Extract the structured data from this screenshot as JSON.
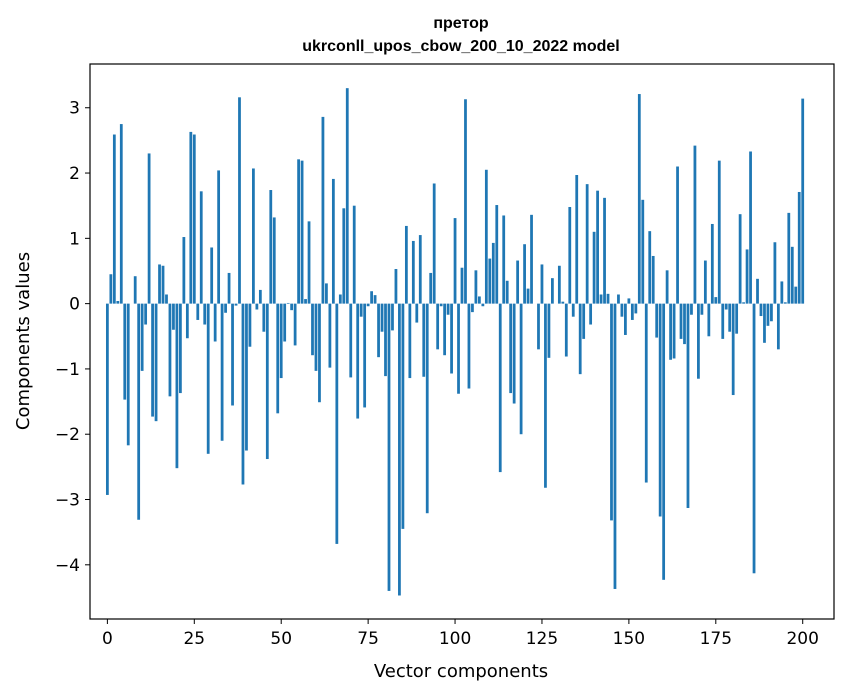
{
  "chart_data": {
    "type": "bar",
    "title_line1": "претор",
    "title_line2": "ukrconll_upos_cbow_200_10_2022 model",
    "xlabel": "Vector components",
    "ylabel": "Components values",
    "xlim": [
      -5,
      209
    ],
    "ylim": [
      -4.83,
      3.67
    ],
    "xticks": [
      0,
      25,
      50,
      75,
      100,
      125,
      150,
      175,
      200
    ],
    "xtick_labels": [
      "0",
      "25",
      "50",
      "75",
      "100",
      "125",
      "150",
      "175",
      "200"
    ],
    "yticks": [
      -4,
      -3,
      -2,
      -1,
      0,
      1,
      2,
      3
    ],
    "ytick_labels": [
      "−4",
      "−3",
      "−2",
      "−1",
      "0",
      "1",
      "2",
      "3"
    ],
    "bar_color": "#1f77b4",
    "grid": false,
    "legend": "none",
    "values": [
      -2.93,
      0.45,
      2.59,
      0.04,
      2.75,
      -1.47,
      -2.17,
      0.0,
      0.42,
      -3.31,
      -1.03,
      -0.32,
      2.3,
      -1.73,
      -1.8,
      0.6,
      0.58,
      0.14,
      -1.42,
      -0.4,
      -2.52,
      -1.37,
      1.02,
      -0.53,
      2.63,
      2.59,
      -0.25,
      1.72,
      -0.32,
      -2.3,
      0.86,
      -0.58,
      2.04,
      -2.1,
      -0.14,
      0.47,
      -1.56,
      -0.03,
      3.16,
      -2.77,
      -2.25,
      -0.66,
      2.07,
      -0.09,
      0.21,
      -0.43,
      -2.38,
      1.74,
      1.32,
      -1.68,
      -1.14,
      -0.58,
      0.01,
      -0.1,
      -0.64,
      2.21,
      2.19,
      0.07,
      1.26,
      -0.79,
      -1.03,
      -1.51,
      2.86,
      0.31,
      -0.98,
      1.91,
      -3.68,
      0.14,
      1.46,
      3.3,
      -1.13,
      1.5,
      -1.76,
      -0.2,
      -1.59,
      -0.04,
      0.19,
      0.13,
      -0.82,
      -0.43,
      -1.11,
      -4.4,
      -0.41,
      0.53,
      -4.47,
      -3.45,
      1.19,
      -1.14,
      0.96,
      -0.29,
      1.05,
      -1.12,
      -3.21,
      0.47,
      1.84,
      -0.7,
      -0.04,
      -0.79,
      -0.17,
      -1.07,
      1.31,
      -1.38,
      0.55,
      3.13,
      -1.3,
      -0.13,
      0.51,
      0.11,
      -0.04,
      2.05,
      0.69,
      0.93,
      1.51,
      -2.58,
      1.35,
      0.35,
      -1.37,
      -1.53,
      0.66,
      -2.0,
      0.91,
      0.23,
      1.36,
      0.0,
      -0.7,
      0.6,
      -2.82,
      -0.83,
      0.39,
      0.0,
      0.58,
      0.03,
      -0.81,
      1.48,
      -0.2,
      1.97,
      -1.08,
      -0.54,
      1.83,
      -0.32,
      1.1,
      1.73,
      0.14,
      1.62,
      0.15,
      -3.32,
      -4.37,
      0.14,
      -0.2,
      -0.48,
      0.08,
      -0.25,
      -0.15,
      3.21,
      1.59,
      -2.74,
      1.11,
      0.73,
      -0.52,
      -3.26,
      -4.23,
      0.51,
      -0.86,
      -0.84,
      2.1,
      -0.54,
      -0.62,
      -3.13,
      -0.17,
      2.42,
      -1.15,
      -0.17,
      0.66,
      -0.5,
      1.22,
      0.1,
      2.19,
      -0.54,
      -0.09,
      -0.43,
      -1.4,
      -0.46,
      1.37,
      0.02,
      0.83,
      2.33,
      -4.13,
      0.38,
      -0.19,
      -0.6,
      -0.34,
      -0.27,
      0.94,
      -0.7,
      0.34,
      0.02,
      1.39,
      0.87,
      0.26,
      1.71,
      3.14
    ]
  }
}
